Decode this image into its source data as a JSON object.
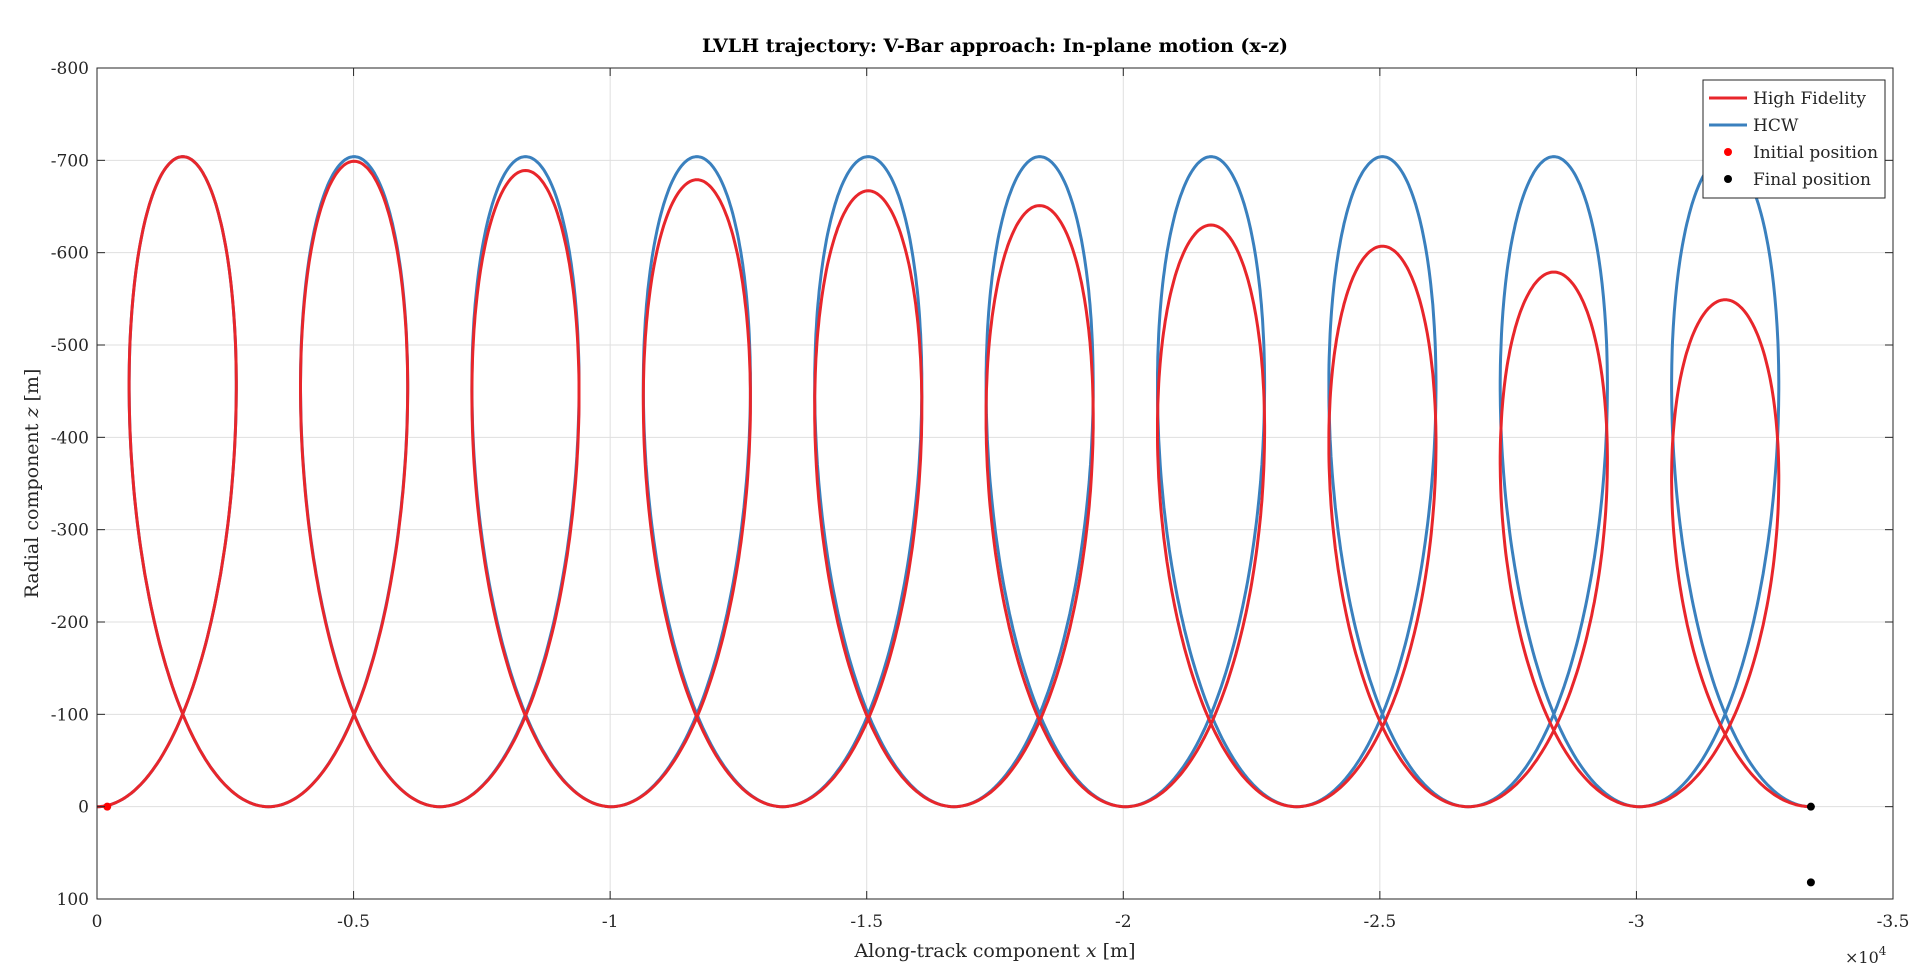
{
  "chart_data": {
    "type": "line",
    "title": "LVLH trajectory: V-Bar approach: In-plane motion (x-z)",
    "xlabel": "Along-track component x [m]",
    "xlabel_parts": [
      "Along-track component ",
      "x",
      " [m]"
    ],
    "ylabel": "Radial component z [m]",
    "ylabel_parts": [
      "Radial component ",
      "z",
      " [m]"
    ],
    "x_exponent_label": "×10",
    "x_exponent_power": "4",
    "xlim": [
      0,
      -35000
    ],
    "ylim": [
      100,
      -800
    ],
    "x_axis_reversed": true,
    "y_axis_reversed": true,
    "x_ticks": [
      0,
      -5000,
      -10000,
      -15000,
      -20000,
      -25000,
      -30000,
      -35000
    ],
    "x_tick_labels": [
      "0",
      "-0.5",
      "-1",
      "-1.5",
      "-2",
      "-2.5",
      "-3",
      "-3.5"
    ],
    "y_ticks": [
      100,
      0,
      -100,
      -200,
      -300,
      -400,
      -500,
      -600,
      -700,
      -800
    ],
    "y_tick_labels": [
      "100",
      "0",
      "-100",
      "-200",
      "-300",
      "-400",
      "-500",
      "-600",
      "-700",
      "-800"
    ],
    "grid": true,
    "legend_position": "top-right",
    "series": [
      {
        "name": "High Fidelity",
        "color": "#e8262b",
        "loops": 10,
        "loop_spacing_x": -3340,
        "amplitude_x": 1800,
        "peak_z": [
          -704,
          -701,
          -697,
          -692,
          -686,
          -678,
          -668,
          -657,
          -644,
          -629
        ],
        "dip_z": [
          0,
          2,
          8,
          13,
          19,
          27,
          38,
          50,
          65,
          80
        ]
      },
      {
        "name": "HCW",
        "color": "#3a80be",
        "loops": 10,
        "loop_spacing_x": -3340,
        "amplitude_x": 1800,
        "peak_z": [
          -704,
          -704,
          -704,
          -704,
          -704,
          -704,
          -704,
          -704,
          -704,
          -704
        ],
        "dip_z": [
          0,
          0,
          0,
          0,
          0,
          0,
          0,
          0,
          0,
          0
        ]
      }
    ],
    "points": [
      {
        "name": "Initial position",
        "color": "#ff0000",
        "coords": [
          [
            -200,
            0
          ]
        ]
      },
      {
        "name": "Final position",
        "color": "#000000",
        "coords": [
          [
            -33400,
            0
          ],
          [
            -33400,
            82
          ]
        ]
      }
    ]
  }
}
